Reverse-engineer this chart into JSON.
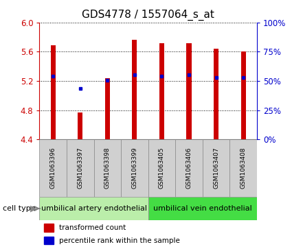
{
  "title": "GDS4778 / 1557064_s_at",
  "samples": [
    "GSM1063396",
    "GSM1063397",
    "GSM1063398",
    "GSM1063399",
    "GSM1063405",
    "GSM1063406",
    "GSM1063407",
    "GSM1063408"
  ],
  "red_values": [
    5.69,
    4.77,
    5.24,
    5.76,
    5.72,
    5.72,
    5.64,
    5.6
  ],
  "blue_values": [
    5.27,
    5.1,
    5.21,
    5.28,
    5.27,
    5.28,
    5.25,
    5.25
  ],
  "ylim_left": [
    4.4,
    6.0
  ],
  "yticks_left": [
    4.4,
    4.8,
    5.2,
    5.6,
    6.0
  ],
  "yticks_right_vals": [
    0,
    25,
    50,
    75,
    100
  ],
  "cell_type_groups": [
    {
      "label": "umbilical artery endothelial",
      "color": "#bbeeaa",
      "n": 4
    },
    {
      "label": "umbilical vein endothelial",
      "color": "#44dd44",
      "n": 4
    }
  ],
  "bar_width": 0.18,
  "bar_color": "#cc0000",
  "dot_color": "#0000cc",
  "dot_size": 3.5,
  "background_color": "#ffffff",
  "plot_bg_color": "#ffffff",
  "title_fontsize": 11,
  "tick_fontsize": 8.5,
  "xlabel_fontsize": 6.5,
  "label_color_left": "#cc0000",
  "label_color_right": "#0000cc",
  "legend_fontsize": 7.5,
  "celltype_fontsize": 8,
  "celltype_label_fontsize": 8
}
